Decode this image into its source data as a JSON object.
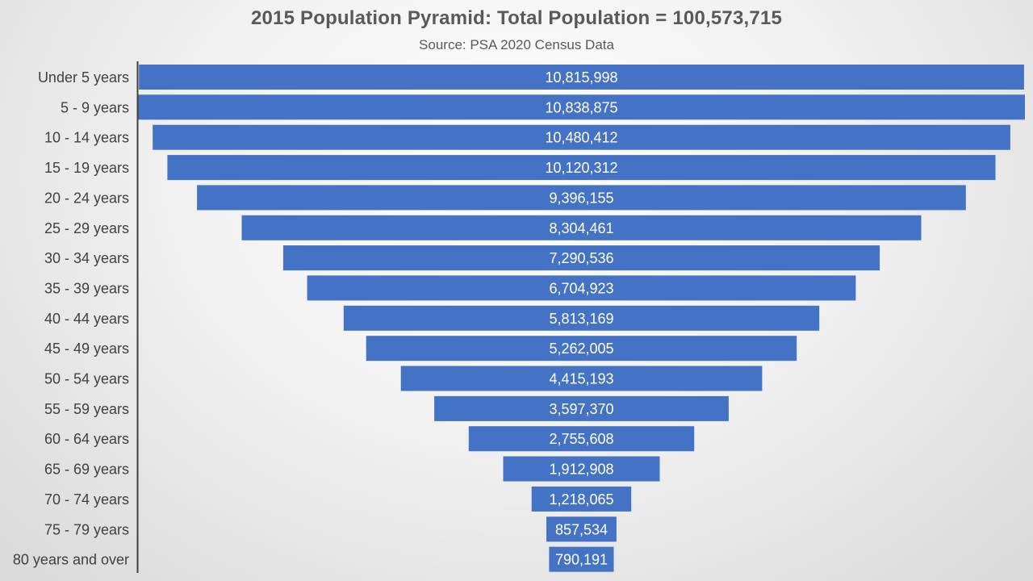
{
  "chart_data": {
    "type": "bar",
    "orientation": "horizontal",
    "style": "funnel",
    "title": "2015 Population Pyramid: Total Population = 100,573,715",
    "subtitle": "Source: PSA 2020 Census  Data",
    "bar_color": "#4472C4",
    "value_label_color": "#FFFFFF",
    "categories": [
      "Under 5 years",
      "5 -   9  years",
      "10 - 14  years",
      "15 - 19  years",
      "20 - 24  years",
      "25 - 29  years",
      "30 - 34  years",
      "35 - 39  years",
      "40 - 44  years",
      "45 - 49  years",
      "50 - 54  years",
      "55 - 59  years",
      "60 - 64  years",
      "65 - 69  years",
      "70 - 74  years",
      "75 - 79  years",
      "80 years and over"
    ],
    "values": [
      10815998,
      10838875,
      10480412,
      10120312,
      9396155,
      8304461,
      7290536,
      6704923,
      5813169,
      5262005,
      4415193,
      3597370,
      2755608,
      1912908,
      1218065,
      857534,
      790191
    ],
    "value_labels": [
      "10,815,998",
      "10,838,875",
      "10,480,412",
      "10,120,312",
      "9,396,155",
      "8,304,461",
      "7,290,536",
      "6,704,923",
      "5,813,169",
      "5,262,005",
      "4,415,193",
      "3,597,370",
      "2,755,608",
      "1,912,908",
      "1,218,065",
      "857,534",
      "790,191"
    ],
    "xlim": [
      0,
      10838875
    ]
  }
}
